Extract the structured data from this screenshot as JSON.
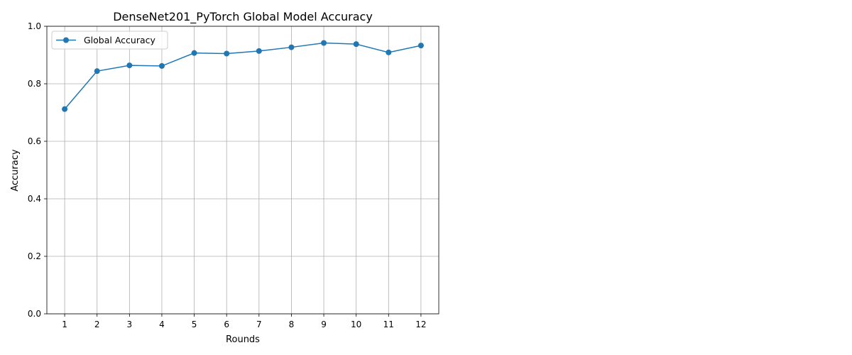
{
  "chart_data": {
    "type": "line",
    "title": "DenseNet201_PyTorch Global Model Accuracy",
    "xlabel": "Rounds",
    "ylabel": "Accuracy",
    "x": [
      1,
      2,
      3,
      4,
      5,
      6,
      7,
      8,
      9,
      10,
      11,
      12
    ],
    "xticks": [
      "1",
      "2",
      "3",
      "4",
      "5",
      "6",
      "7",
      "8",
      "9",
      "10",
      "11",
      "12"
    ],
    "ylim": [
      0,
      1
    ],
    "yticks": [
      "0.0",
      "0.2",
      "0.4",
      "0.6",
      "0.8",
      "1.0"
    ],
    "grid": true,
    "legend_position": "top-left",
    "series": [
      {
        "name": "Global Accuracy",
        "color": "#1f77b4",
        "marker": "circle",
        "values": [
          0.712,
          0.844,
          0.864,
          0.862,
          0.907,
          0.905,
          0.914,
          0.927,
          0.942,
          0.938,
          0.909,
          0.933
        ]
      }
    ]
  }
}
